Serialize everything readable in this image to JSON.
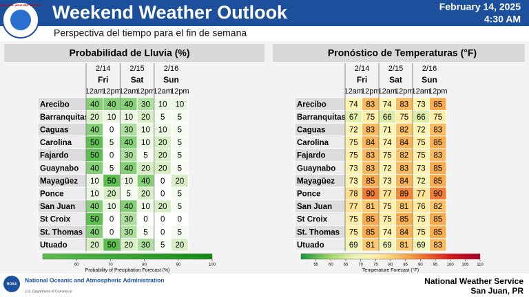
{
  "header": {
    "title": "Weekend Weather Outlook",
    "subtitle": "Perspectiva del tiempo para el fin de semana",
    "date": "February 14, 2025",
    "time": "4:30 AM",
    "logo": "NATIONAL WEATHER SERVICE"
  },
  "rain": {
    "title": "Probabilidad de Lluvia (%)",
    "days": [
      {
        "date": "2/14",
        "day": "Fri",
        "times": [
          "12am",
          "12pm"
        ]
      },
      {
        "date": "2/15",
        "day": "Sat",
        "times": [
          "12am",
          "12pm"
        ]
      },
      {
        "date": "2/16",
        "day": "Sun",
        "times": [
          "12am",
          "12pm"
        ]
      }
    ],
    "rows": [
      {
        "name": "Arecibo",
        "values": [
          40,
          40,
          40,
          30,
          10,
          10
        ]
      },
      {
        "name": "Barranquitas",
        "values": [
          20,
          10,
          10,
          20,
          5,
          5
        ]
      },
      {
        "name": "Caguas",
        "values": [
          40,
          0,
          30,
          10,
          10,
          5
        ]
      },
      {
        "name": "Carolina",
        "values": [
          50,
          5,
          40,
          10,
          20,
          5
        ]
      },
      {
        "name": "Fajardo",
        "values": [
          50,
          0,
          30,
          5,
          20,
          5
        ]
      },
      {
        "name": "Guaynabo",
        "values": [
          40,
          5,
          40,
          20,
          20,
          5
        ]
      },
      {
        "name": "Mayagüez",
        "values": [
          10,
          50,
          10,
          40,
          0,
          20
        ]
      },
      {
        "name": "Ponce",
        "values": [
          10,
          20,
          5,
          20,
          0,
          5
        ]
      },
      {
        "name": "San Juan",
        "values": [
          40,
          10,
          40,
          10,
          20,
          5
        ]
      },
      {
        "name": "St Croix",
        "values": [
          50,
          0,
          30,
          0,
          0,
          0
        ]
      },
      {
        "name": "St. Thomas",
        "values": [
          40,
          0,
          30,
          5,
          0,
          5
        ]
      },
      {
        "name": "Utuado",
        "values": [
          20,
          50,
          20,
          30,
          5,
          20
        ]
      }
    ],
    "color_stops": [
      {
        "value": 0,
        "color": "#ffffff"
      },
      {
        "value": 20,
        "color": "#d8efc6"
      },
      {
        "value": 50,
        "color": "#5cbf4f"
      },
      {
        "value": 100,
        "color": "#138a13"
      }
    ],
    "legend": {
      "label": "Probability of Precipitation Forecast (%)",
      "lim": [
        50,
        100
      ],
      "ticks": [
        60,
        70,
        80,
        90,
        100
      ]
    }
  },
  "temp": {
    "title": "Pronóstico de Temperaturas (°F)",
    "days": [
      {
        "date": "2/14",
        "day": "Fri",
        "times": [
          "12am",
          "12pm"
        ]
      },
      {
        "date": "2/15",
        "day": "Sat",
        "times": [
          "12am",
          "12pm"
        ]
      },
      {
        "date": "2/16",
        "day": "Sun",
        "times": [
          "12am",
          "12pm"
        ]
      }
    ],
    "rows": [
      {
        "name": "Arecibo",
        "values": [
          74,
          83,
          74,
          83,
          73,
          85
        ]
      },
      {
        "name": "Barranquitas",
        "values": [
          67,
          75,
          66,
          75,
          66,
          75
        ]
      },
      {
        "name": "Caguas",
        "values": [
          72,
          83,
          71,
          82,
          72,
          83
        ]
      },
      {
        "name": "Carolina",
        "values": [
          75,
          84,
          74,
          84,
          75,
          85
        ]
      },
      {
        "name": "Fajardo",
        "values": [
          75,
          83,
          75,
          82,
          75,
          83
        ]
      },
      {
        "name": "Guaynabo",
        "values": [
          73,
          83,
          72,
          83,
          73,
          85
        ]
      },
      {
        "name": "Mayagüez",
        "values": [
          73,
          85,
          73,
          84,
          72,
          85
        ]
      },
      {
        "name": "Ponce",
        "values": [
          78,
          90,
          77,
          89,
          77,
          90
        ]
      },
      {
        "name": "San Juan",
        "values": [
          77,
          81,
          75,
          81,
          76,
          82
        ]
      },
      {
        "name": "St Croix",
        "values": [
          75,
          85,
          75,
          85,
          75,
          85
        ]
      },
      {
        "name": "St. Thomas",
        "values": [
          75,
          85,
          74,
          84,
          75,
          85
        ]
      },
      {
        "name": "Utuado",
        "values": [
          69,
          81,
          69,
          81,
          69,
          83
        ]
      }
    ],
    "color_stops": [
      {
        "value": 50,
        "color": "#1a9641"
      },
      {
        "value": 60,
        "color": "#a6d96a"
      },
      {
        "value": 68,
        "color": "#eef5b8"
      },
      {
        "value": 74,
        "color": "#fff3b0"
      },
      {
        "value": 80,
        "color": "#fdd27a"
      },
      {
        "value": 86,
        "color": "#f7a445"
      },
      {
        "value": 92,
        "color": "#ee6a2c"
      },
      {
        "value": 100,
        "color": "#d7191c"
      },
      {
        "value": 110,
        "color": "#a50026"
      }
    ],
    "legend": {
      "label": "Temperature Forecast (°F)",
      "lim": [
        50,
        110
      ],
      "ticks": [
        55,
        60,
        65,
        70,
        75,
        80,
        85,
        90,
        95,
        100,
        105,
        110
      ]
    }
  },
  "footer": {
    "agency": "National Oceanic and Atmospheric Administration",
    "department": "U.S. Department of Commerce",
    "logo": "NOAA",
    "office": "National Weather Service",
    "location": "San Juan, PR"
  }
}
